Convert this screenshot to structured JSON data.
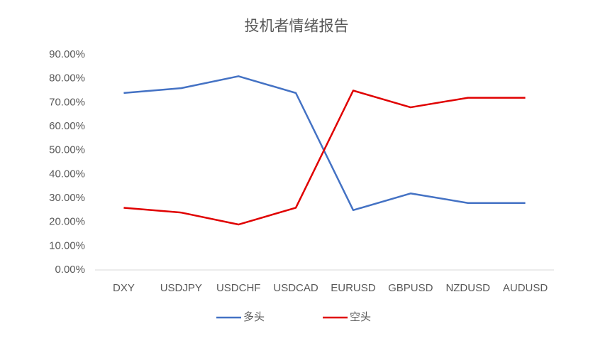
{
  "chart_data": {
    "type": "line",
    "title": "投机者情绪报告",
    "categories": [
      "DXY",
      "USDJPY",
      "USDCHF",
      "USDCAD",
      "EURUSD",
      "GBPUSD",
      "NZDUSD",
      "AUDUSD"
    ],
    "series": [
      {
        "name": "多头",
        "color": "#4472c4",
        "values": [
          74,
          76,
          81,
          74,
          25,
          32,
          28,
          28
        ]
      },
      {
        "name": "空头",
        "color": "#e00000",
        "values": [
          26,
          24,
          19,
          26,
          75,
          68,
          72,
          72
        ]
      }
    ],
    "ylim": [
      0,
      90
    ],
    "yticks": [
      {
        "value": 0,
        "label": "0.00%"
      },
      {
        "value": 10,
        "label": "10.00%"
      },
      {
        "value": 20,
        "label": "20.00%"
      },
      {
        "value": 30,
        "label": "30.00%"
      },
      {
        "value": 40,
        "label": "40.00%"
      },
      {
        "value": 50,
        "label": "50.00%"
      },
      {
        "value": 60,
        "label": "60.00%"
      },
      {
        "value": 70,
        "label": "70.00%"
      },
      {
        "value": 80,
        "label": "80.00%"
      },
      {
        "value": 90,
        "label": "90.00%"
      }
    ],
    "legend": "bottom"
  }
}
